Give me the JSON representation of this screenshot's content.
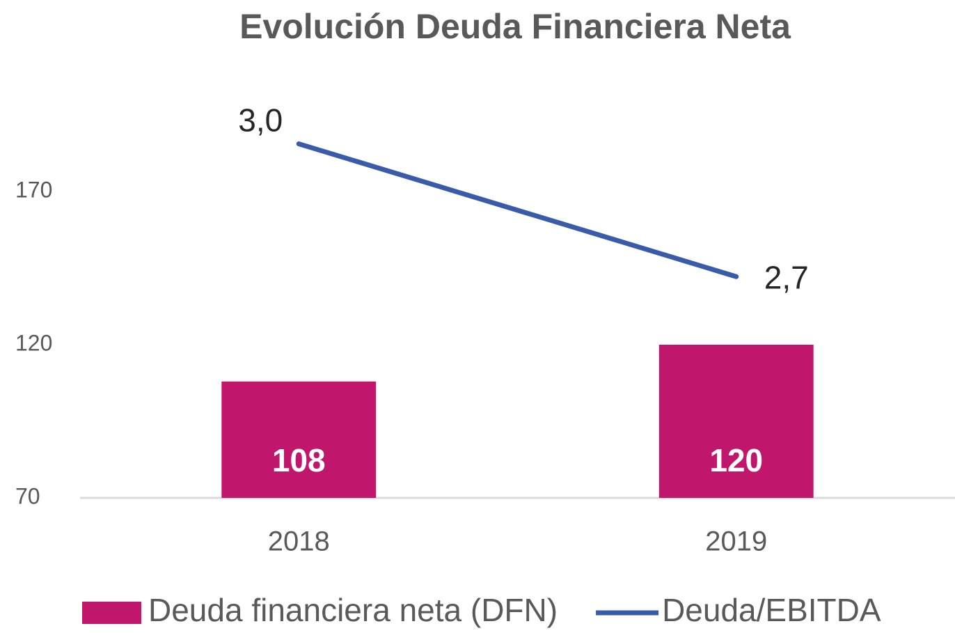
{
  "chart_data": {
    "type": "bar",
    "title": "Evolución Deuda Financiera Neta",
    "categories": [
      "2018",
      "2019"
    ],
    "ylim": [
      70,
      200
    ],
    "yticks": [
      70,
      120,
      170
    ],
    "y2lim": [
      2.2,
      3.1
    ],
    "grid": false,
    "legend": "bottom",
    "series": [
      {
        "name": "Deuda financiera neta (DFN)",
        "type": "bar",
        "color": "#c0176c",
        "values": [
          108,
          120
        ]
      },
      {
        "name": "Deuda/EBITDA",
        "type": "line",
        "axis": "y2",
        "color": "#3a5ba9",
        "values": [
          3.0,
          2.7
        ],
        "value_labels": [
          "3,0",
          "2,7"
        ]
      }
    ]
  }
}
